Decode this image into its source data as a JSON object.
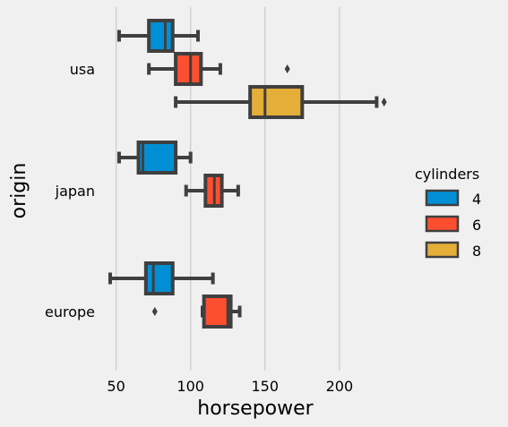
{
  "chart_data": {
    "type": "box",
    "orientation": "horizontal",
    "xlabel": "horsepower",
    "ylabel": "origin",
    "xlim": [
      40,
      238
    ],
    "x_ticks": [
      50,
      100,
      150,
      200
    ],
    "categories": [
      "usa",
      "japan",
      "europe"
    ],
    "grid": "vertical",
    "legend": {
      "title": "cylinders",
      "placement": "right"
    },
    "series": [
      {
        "name": "4",
        "color": "#008fd5"
      },
      {
        "name": "6",
        "color": "#fc4f30"
      },
      {
        "name": "8",
        "color": "#e5ae38"
      }
    ],
    "boxes": [
      {
        "category": "usa",
        "series": "4",
        "whislo": 52,
        "q1": 72,
        "median": 83,
        "q3": 88,
        "whishi": 105,
        "fliers": []
      },
      {
        "category": "usa",
        "series": "6",
        "whislo": 72,
        "q1": 90,
        "median": 100,
        "q3": 107,
        "whishi": 120,
        "fliers": [
          165
        ]
      },
      {
        "category": "usa",
        "series": "8",
        "whislo": 90,
        "q1": 140,
        "median": 150,
        "q3": 175,
        "whishi": 225,
        "fliers": [
          230
        ]
      },
      {
        "category": "japan",
        "series": "4",
        "whislo": 52,
        "q1": 65,
        "median": 68,
        "q3": 90,
        "whishi": 100,
        "fliers": []
      },
      {
        "category": "japan",
        "series": "6",
        "whislo": 97,
        "q1": 110,
        "median": 116,
        "q3": 121,
        "whishi": 132,
        "fliers": []
      },
      {
        "category": "europe",
        "series": "4",
        "whislo": 46,
        "q1": 70,
        "median": 75,
        "q3": 88,
        "whishi": 115,
        "fliers": []
      },
      {
        "category": "europe",
        "series": "6",
        "whislo": 108,
        "q1": 109,
        "median": 125,
        "q3": 127,
        "whishi": 133,
        "fliers": [
          76
        ]
      }
    ]
  }
}
